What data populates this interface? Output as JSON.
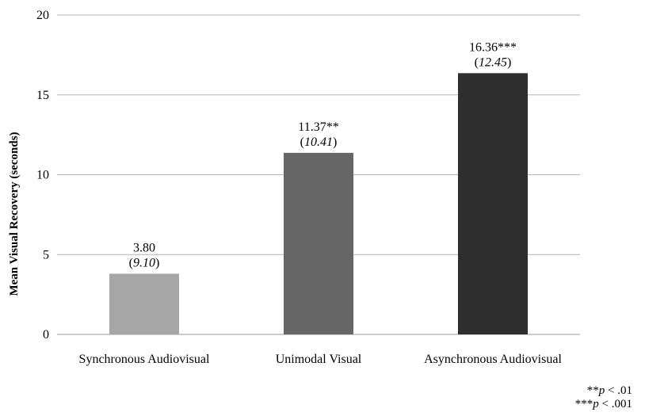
{
  "chart_data": {
    "type": "bar",
    "title": "",
    "xlabel": "",
    "ylabel": "Mean Visual Recovery (seconds)",
    "ylim": [
      0,
      20
    ],
    "yticks": [
      "0",
      "5",
      "10",
      "15",
      "20"
    ],
    "grid": true,
    "categories": [
      "Synchronous Audiovisual",
      "Unimodal Visual",
      "Asynchronous Audiovisual"
    ],
    "values": [
      3.8,
      11.37,
      16.36
    ],
    "value_labels": [
      "3.80",
      "11.37**",
      "16.36***"
    ],
    "sd_labels": [
      "9.10",
      "10.41",
      "12.45"
    ],
    "colors": [
      "#a6a6a6",
      "#666666",
      "#2e2e2e"
    ]
  },
  "footnotes": [
    {
      "stars": "**",
      "p": "p",
      "rest": " < .01"
    },
    {
      "stars": "***",
      "p": "p",
      "rest": " < .001"
    }
  ]
}
